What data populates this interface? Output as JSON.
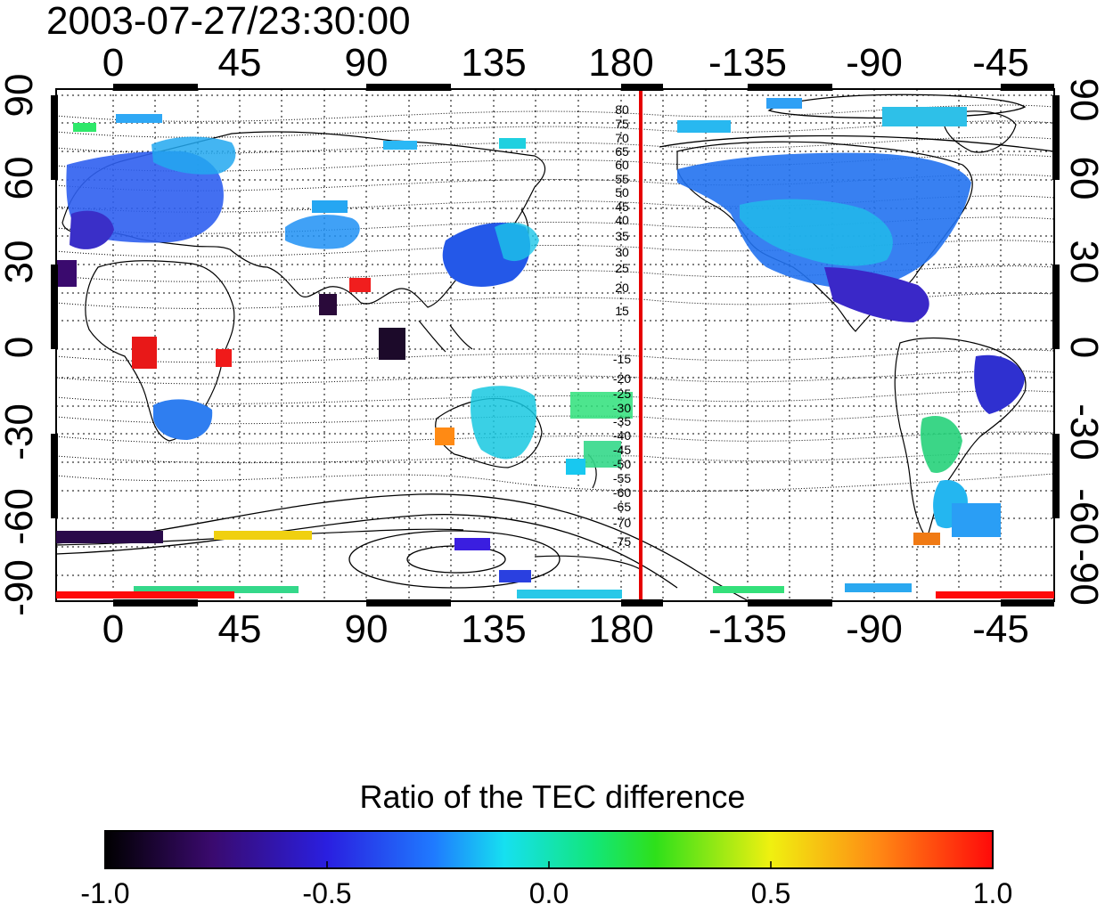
{
  "title": "2003-07-27/23:30:00",
  "map": {
    "top_axis_ticks": [
      "0",
      "45",
      "90",
      "135",
      "180",
      "-135",
      "-90",
      "-45"
    ],
    "bottom_axis_ticks": [
      "0",
      "45",
      "90",
      "135",
      "180",
      "-135",
      "-90",
      "-45"
    ],
    "left_axis_ticks": [
      "90",
      "60",
      "30",
      "0",
      "-30",
      "-60",
      "-90"
    ],
    "right_axis_ticks": [
      "90",
      "60",
      "30",
      "0",
      "-30",
      "-60",
      "-90"
    ],
    "contour_labels_north": [
      "80",
      "75",
      "70",
      "65",
      "60",
      "55",
      "50",
      "45",
      "40",
      "35",
      "30",
      "25",
      "20",
      "15"
    ],
    "contour_labels_south": [
      "-15",
      "-20",
      "-25",
      "-30",
      "-35",
      "-40",
      "-45",
      "-50",
      "-55",
      "-60",
      "-65",
      "-70",
      "-75"
    ],
    "terminator_longitude": 186,
    "grid": "dotted"
  },
  "colorbar": {
    "title": "Ratio of the TEC difference",
    "tick_labels": [
      "-1.0",
      "-0.5",
      "0.0",
      "0.5",
      "1.0"
    ],
    "range": [
      -1.0,
      1.0
    ],
    "colormap": "jet-like (black-purple-blue-cyan-green-yellow-red)"
  },
  "colors": {
    "terminator": "#e60000",
    "coastline": "#000000",
    "grid": "#000000"
  }
}
